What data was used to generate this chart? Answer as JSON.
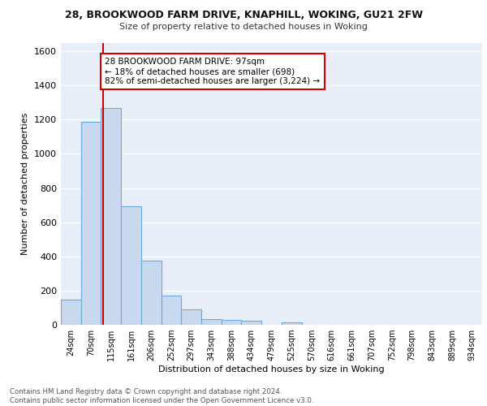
{
  "title1": "28, BROOKWOOD FARM DRIVE, KNAPHILL, WOKING, GU21 2FW",
  "title2": "Size of property relative to detached houses in Woking",
  "xlabel": "Distribution of detached houses by size in Woking",
  "ylabel": "Number of detached properties",
  "bar_labels": [
    "24sqm",
    "70sqm",
    "115sqm",
    "161sqm",
    "206sqm",
    "252sqm",
    "297sqm",
    "343sqm",
    "388sqm",
    "434sqm",
    "479sqm",
    "525sqm",
    "570sqm",
    "616sqm",
    "661sqm",
    "707sqm",
    "752sqm",
    "798sqm",
    "843sqm",
    "889sqm",
    "934sqm"
  ],
  "bar_values": [
    148,
    1185,
    1268,
    693,
    375,
    170,
    90,
    35,
    27,
    22,
    0,
    15,
    0,
    0,
    0,
    0,
    0,
    0,
    0,
    0,
    0
  ],
  "bar_color": "#c8d9ef",
  "bar_edge_color": "#6aaad4",
  "vline_color": "#cc0000",
  "annotation_text": "28 BROOKWOOD FARM DRIVE: 97sqm\n← 18% of detached houses are smaller (698)\n82% of semi-detached houses are larger (3,224) →",
  "annotation_box_color": "#ffffff",
  "annotation_box_edge": "#cc0000",
  "ylim": [
    0,
    1650
  ],
  "yticks": [
    0,
    200,
    400,
    600,
    800,
    1000,
    1200,
    1400,
    1600
  ],
  "background_color": "#e8eef8",
  "footer": "Contains HM Land Registry data © Crown copyright and database right 2024.\nContains public sector information licensed under the Open Government Licence v3.0."
}
